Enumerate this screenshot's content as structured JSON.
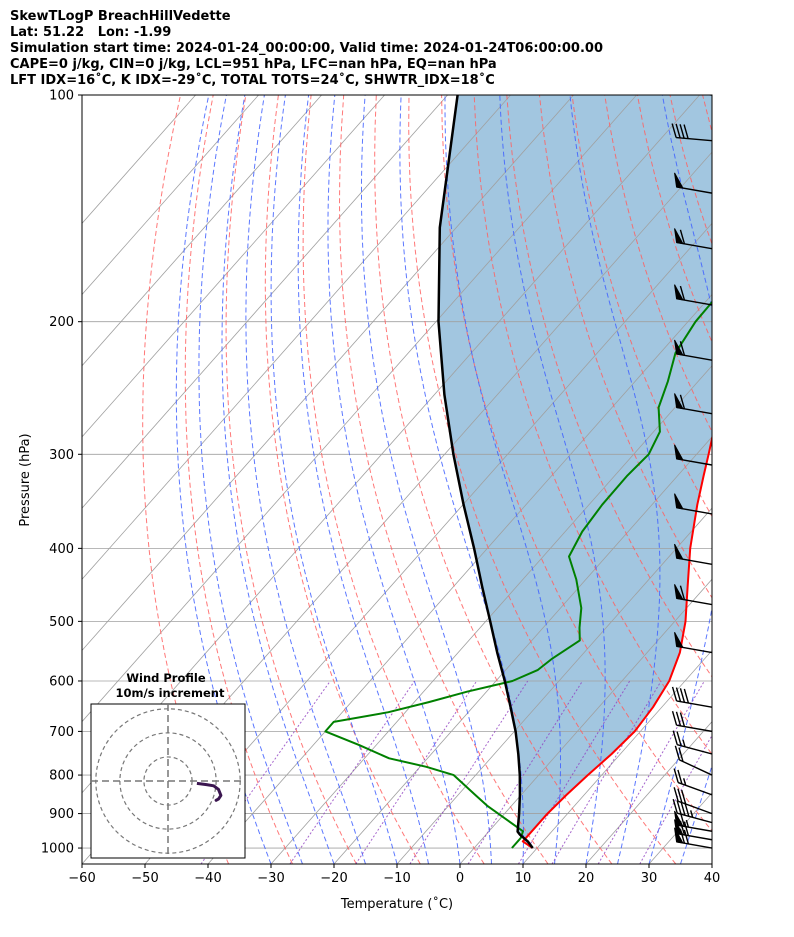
{
  "header": {
    "line1": "SkewTLogP BreachHillVedette",
    "line2": "Lat: 51.22   Lon: -1.99",
    "line3": "Simulation start time: 2024-01-24_00:00:00, Valid time: 2024-01-24T06:00:00.00",
    "line4": "CAPE=0 j/kg, CIN=0 j/kg, LCL=951 hPa, LFC=nan hPa, EQ=nan hPa",
    "line5": "LFT IDX=16˚C, K IDX=-29˚C, TOTAL TOTS=24˚C, SHWTR_IDX=18˚C"
  },
  "chart_data": {
    "type": "skewt",
    "xlabel": "Temperature (˚C)",
    "ylabel": "Pressure (hPa)",
    "xlim": [
      -60,
      40
    ],
    "ylim": [
      1050,
      100
    ],
    "log_y": true,
    "grid": true,
    "x_ticks": [
      -60,
      -50,
      -40,
      -30,
      -20,
      -10,
      0,
      10,
      20,
      30,
      40
    ],
    "x_tick_labels": [
      "−60",
      "−50",
      "−40",
      "−30",
      "−20",
      "−10",
      "0",
      "10",
      "20",
      "30",
      "40"
    ],
    "y_ticks": [
      1000,
      900,
      800,
      700,
      600,
      500,
      400,
      300,
      200,
      100
    ],
    "y_tick_labels": [
      "1000",
      "900",
      "800",
      "700",
      "600",
      "500",
      "400",
      "300",
      "200",
      "100"
    ],
    "colors": {
      "temperature": "#ff0000",
      "dewpoint": "#008000",
      "parcel": "#000000",
      "shading": "#a2c6e0",
      "dry_adiabat": "#ff6060",
      "moist_adiabat": "#4060ff",
      "mixing_ratio": "#9040c0",
      "isotherm": "#a0a0a0",
      "hodograph": "#3b1650"
    },
    "series": [
      {
        "name": "",
        "role": "temperature",
        "points": [
          [
            1000,
            9.3
          ],
          [
            980,
            6.8
          ],
          [
            950,
            6.8
          ],
          [
            900,
            6.8
          ],
          [
            850,
            7.2
          ],
          [
            800,
            7.8
          ],
          [
            750,
            8.6
          ],
          [
            700,
            9.1
          ],
          [
            650,
            8.6
          ],
          [
            600,
            7.5
          ],
          [
            550,
            5.2
          ],
          [
            500,
            1.7
          ],
          [
            450,
            -2.8
          ],
          [
            400,
            -7.8
          ],
          [
            350,
            -12.8
          ],
          [
            320,
            -15.9
          ],
          [
            300,
            -18.1
          ],
          [
            250,
            -24.4
          ],
          [
            220,
            -28.8
          ],
          [
            210,
            -29.6
          ],
          [
            200,
            -29.8
          ],
          [
            190,
            -28.7
          ],
          [
            180,
            -27.1
          ],
          [
            170,
            -25.0
          ],
          [
            160,
            -22.3
          ],
          [
            150,
            -19.8
          ],
          [
            140,
            -17.4
          ],
          [
            130,
            -15.4
          ],
          [
            120,
            -12.7
          ],
          [
            110,
            -10.9
          ],
          [
            100,
            -9.7
          ]
        ]
      },
      {
        "name": "",
        "role": "dewpoint",
        "points": [
          [
            1000,
            6.0
          ],
          [
            970,
            6.0
          ],
          [
            950,
            5.4
          ],
          [
            920,
            1.6
          ],
          [
            880,
            -3.7
          ],
          [
            850,
            -7.3
          ],
          [
            800,
            -13.5
          ],
          [
            780,
            -19.0
          ],
          [
            760,
            -26.1
          ],
          [
            730,
            -32.7
          ],
          [
            700,
            -40.0
          ],
          [
            680,
            -40.0
          ],
          [
            660,
            -32.7
          ],
          [
            640,
            -27.7
          ],
          [
            620,
            -23.1
          ],
          [
            600,
            -17.4
          ],
          [
            580,
            -14.9
          ],
          [
            560,
            -14.2
          ],
          [
            530,
            -12.4
          ],
          [
            510,
            -14.2
          ],
          [
            480,
            -16.7
          ],
          [
            440,
            -21.5
          ],
          [
            410,
            -25.9
          ],
          [
            380,
            -27.3
          ],
          [
            350,
            -27.9
          ],
          [
            320,
            -28.0
          ],
          [
            300,
            -27.6
          ],
          [
            280,
            -29.0
          ],
          [
            260,
            -32.6
          ],
          [
            240,
            -34.8
          ],
          [
            220,
            -37.6
          ],
          [
            200,
            -38.8
          ],
          [
            190,
            -38.9
          ],
          [
            180,
            -39.1
          ],
          [
            170,
            -38.7
          ],
          [
            160,
            -38.6
          ],
          [
            150,
            -39.2
          ],
          [
            140,
            -41.6
          ],
          [
            130,
            -41.5
          ],
          [
            120,
            -40.2
          ],
          [
            110,
            -37.6
          ],
          [
            100,
            -35.9
          ]
        ]
      },
      {
        "name": "",
        "role": "parcel",
        "points": [
          [
            1000,
            9.3
          ],
          [
            980,
            7.6
          ],
          [
            960,
            5.4
          ],
          [
            951,
            4.6
          ],
          [
            900,
            2.3
          ],
          [
            850,
            -0.2
          ],
          [
            800,
            -3.0
          ],
          [
            750,
            -6.2
          ],
          [
            700,
            -9.8
          ],
          [
            650,
            -14.0
          ],
          [
            600,
            -18.6
          ],
          [
            550,
            -23.8
          ],
          [
            500,
            -29.3
          ],
          [
            450,
            -35.4
          ],
          [
            400,
            -42.1
          ],
          [
            350,
            -49.9
          ],
          [
            300,
            -58.6
          ],
          [
            250,
            -68.4
          ],
          [
            200,
            -79.6
          ],
          [
            150,
            -92.6
          ],
          [
            100,
            -108.4
          ]
        ]
      }
    ],
    "wind_barbs": [
      {
        "p": 1000,
        "speed_kt": 70,
        "dir_deg": 280
      },
      {
        "p": 975,
        "speed_kt": 70,
        "dir_deg": 280
      },
      {
        "p": 950,
        "speed_kt": 65,
        "dir_deg": 280
      },
      {
        "p": 925,
        "speed_kt": 45,
        "dir_deg": 285
      },
      {
        "p": 900,
        "speed_kt": 30,
        "dir_deg": 290
      },
      {
        "p": 850,
        "speed_kt": 25,
        "dir_deg": 290
      },
      {
        "p": 800,
        "speed_kt": 20,
        "dir_deg": 295
      },
      {
        "p": 750,
        "speed_kt": 25,
        "dir_deg": 285
      },
      {
        "p": 700,
        "speed_kt": 30,
        "dir_deg": 280
      },
      {
        "p": 650,
        "speed_kt": 40,
        "dir_deg": 280
      },
      {
        "p": 550,
        "speed_kt": 50,
        "dir_deg": 280
      },
      {
        "p": 475,
        "speed_kt": 60,
        "dir_deg": 280
      },
      {
        "p": 420,
        "speed_kt": 50,
        "dir_deg": 280
      },
      {
        "p": 360,
        "speed_kt": 50,
        "dir_deg": 280
      },
      {
        "p": 310,
        "speed_kt": 50,
        "dir_deg": 280
      },
      {
        "p": 265,
        "speed_kt": 60,
        "dir_deg": 280
      },
      {
        "p": 225,
        "speed_kt": 60,
        "dir_deg": 280
      },
      {
        "p": 190,
        "speed_kt": 60,
        "dir_deg": 280
      },
      {
        "p": 160,
        "speed_kt": 60,
        "dir_deg": 280
      },
      {
        "p": 135,
        "speed_kt": 50,
        "dir_deg": 280
      },
      {
        "p": 115,
        "speed_kt": 40,
        "dir_deg": 275
      },
      {
        "p": 100,
        "speed_kt": 40,
        "dir_deg": 275
      }
    ],
    "hodograph": {
      "title": "Wind Profile",
      "subtitle": "10m/s increment",
      "increment_ms": 10,
      "rings": [
        10,
        20,
        30
      ],
      "u_ms": [
        12,
        16,
        19,
        21,
        22,
        21,
        20,
        21
      ],
      "v_ms": [
        -1,
        -1.5,
        -2,
        -3.5,
        -6,
        -7.5,
        -8,
        -7.5
      ]
    }
  }
}
